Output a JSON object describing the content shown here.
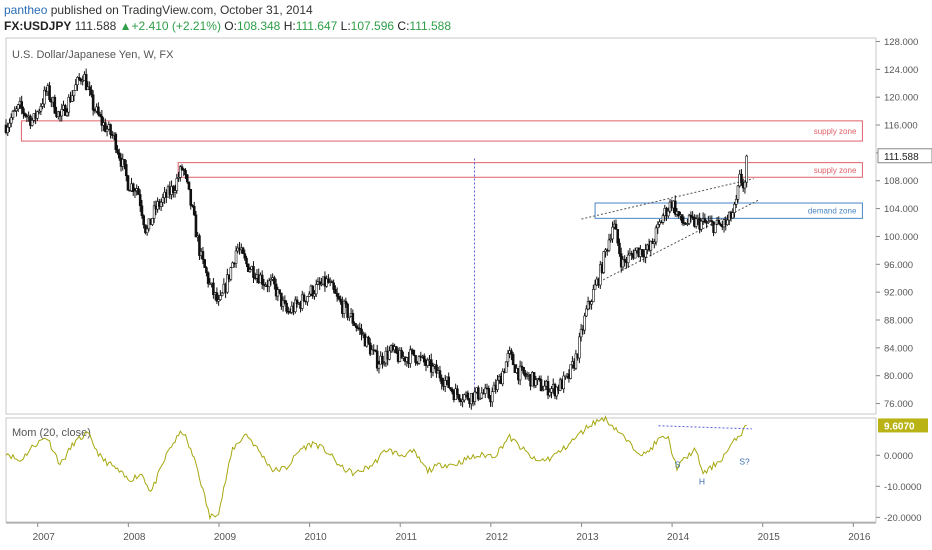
{
  "header": {
    "author": "pantheo",
    "published": "published on TradingView.com, October 31, 2014",
    "symbol": "FX:USDJPY",
    "last": "111.588",
    "change": "+2.410 (+2.21%)",
    "o_label": "O:",
    "o_value": "108.348",
    "h_label": "H:",
    "h_value": "111.647",
    "l_label": "L:",
    "l_value": "107.596",
    "c_label": "C:",
    "c_value": "111.588"
  },
  "chart_data": {
    "type": "candlestick",
    "title": "U.S. Dollar/Japanese Yen, W, FX",
    "price_axis": {
      "ticks": [
        "128.000",
        "124.000",
        "120.000",
        "116.000",
        "112.000",
        "108.000",
        "104.000",
        "100.000",
        "96.000",
        "92.000",
        "88.000",
        "84.000",
        "80.000",
        "76.000"
      ],
      "ylim": [
        74.5,
        128.5
      ],
      "last_price_label": "111.588",
      "last_price": 111.588
    },
    "x_axis": {
      "labels": [
        "2007",
        "2008",
        "2009",
        "2010",
        "2011",
        "2012",
        "2013",
        "2014",
        "2015",
        "2016"
      ],
      "xlim": [
        2006.65,
        2016.25
      ]
    },
    "price_path": [
      [
        2006.65,
        116.0
      ],
      [
        2006.8,
        118.5
      ],
      [
        2006.95,
        116.5
      ],
      [
        2007.1,
        121.0
      ],
      [
        2007.25,
        117.0
      ],
      [
        2007.4,
        121.0
      ],
      [
        2007.5,
        123.5
      ],
      [
        2007.6,
        119.0
      ],
      [
        2007.7,
        116.5
      ],
      [
        2007.85,
        114.0
      ],
      [
        2008.0,
        107.5
      ],
      [
        2008.1,
        107.0
      ],
      [
        2008.2,
        100.5
      ],
      [
        2008.3,
        104.0
      ],
      [
        2008.4,
        105.5
      ],
      [
        2008.5,
        107.0
      ],
      [
        2008.6,
        110.0
      ],
      [
        2008.7,
        104.0
      ],
      [
        2008.8,
        97.0
      ],
      [
        2008.9,
        93.0
      ],
      [
        2009.0,
        90.0
      ],
      [
        2009.1,
        94.0
      ],
      [
        2009.2,
        98.5
      ],
      [
        2009.3,
        96.0
      ],
      [
        2009.4,
        95.0
      ],
      [
        2009.5,
        93.5
      ],
      [
        2009.6,
        93.0
      ],
      [
        2009.75,
        89.0
      ],
      [
        2009.9,
        90.5
      ],
      [
        2010.0,
        92.0
      ],
      [
        2010.2,
        93.5
      ],
      [
        2010.3,
        91.0
      ],
      [
        2010.45,
        88.5
      ],
      [
        2010.6,
        85.5
      ],
      [
        2010.75,
        82.0
      ],
      [
        2010.9,
        83.5
      ],
      [
        2011.0,
        82.5
      ],
      [
        2011.15,
        83.0
      ],
      [
        2011.3,
        81.5
      ],
      [
        2011.45,
        80.0
      ],
      [
        2011.6,
        77.5
      ],
      [
        2011.75,
        77.0
      ],
      [
        2011.9,
        77.5
      ],
      [
        2012.0,
        77.0
      ],
      [
        2012.1,
        79.5
      ],
      [
        2012.2,
        83.0
      ],
      [
        2012.3,
        80.5
      ],
      [
        2012.45,
        79.5
      ],
      [
        2012.55,
        78.5
      ],
      [
        2012.7,
        78.0
      ],
      [
        2012.85,
        79.5
      ],
      [
        2012.95,
        83.0
      ],
      [
        2013.05,
        89.0
      ],
      [
        2013.2,
        94.5
      ],
      [
        2013.35,
        102.0
      ],
      [
        2013.45,
        96.0
      ],
      [
        2013.6,
        98.0
      ],
      [
        2013.75,
        98.0
      ],
      [
        2013.9,
        103.0
      ],
      [
        2014.0,
        105.0
      ],
      [
        2014.1,
        102.0
      ],
      [
        2014.3,
        102.0
      ],
      [
        2014.5,
        101.5
      ],
      [
        2014.6,
        101.8
      ],
      [
        2014.7,
        104.0
      ],
      [
        2014.75,
        108.5
      ],
      [
        2014.8,
        107.0
      ],
      [
        2014.83,
        111.6
      ]
    ],
    "zones": [
      {
        "label": "supply zone",
        "y_low": 113.7,
        "y_high": 116.6,
        "x_start": 2006.82,
        "x_end": 2016.1,
        "color": "#e0606a"
      },
      {
        "label": "supply zone",
        "y_low": 108.5,
        "y_high": 110.6,
        "x_start": 2008.55,
        "x_end": 2016.1,
        "color": "#e0606a"
      },
      {
        "label": "demand zone",
        "y_low": 102.6,
        "y_high": 104.8,
        "x_start": 2013.15,
        "x_end": 2016.1,
        "color": "#4a86c7"
      }
    ],
    "annotations": [
      {
        "kind": "vline",
        "x": 2011.82,
        "y_from": 111.2,
        "y_to": 76.0,
        "color": "#5a5adf"
      },
      {
        "kind": "trendline",
        "x1": 2013.0,
        "y1": 102.5,
        "x2": 2014.9,
        "y2": 108.3
      },
      {
        "kind": "trendline",
        "x1": 2013.2,
        "y1": 93.5,
        "x2": 2014.95,
        "y2": 105.2
      }
    ],
    "indicator": {
      "title": "Mom (20, close)",
      "ticks": [
        "0.0000",
        "-10.0000",
        "-20.0000"
      ],
      "ylim": [
        -21.5,
        12.0
      ],
      "last_label": "9.6070",
      "last_value": 9.607,
      "path": [
        [
          2006.65,
          1
        ],
        [
          2006.8,
          -2
        ],
        [
          2006.95,
          3
        ],
        [
          2007.1,
          6
        ],
        [
          2007.25,
          -3
        ],
        [
          2007.4,
          4
        ],
        [
          2007.55,
          7
        ],
        [
          2007.7,
          -1
        ],
        [
          2007.85,
          -4
        ],
        [
          2008.0,
          -8
        ],
        [
          2008.15,
          -6
        ],
        [
          2008.25,
          -12
        ],
        [
          2008.45,
          2
        ],
        [
          2008.6,
          8
        ],
        [
          2008.75,
          -3
        ],
        [
          2008.9,
          -20
        ],
        [
          2009.0,
          -18
        ],
        [
          2009.15,
          2
        ],
        [
          2009.3,
          7
        ],
        [
          2009.45,
          1
        ],
        [
          2009.6,
          -5
        ],
        [
          2009.75,
          -4
        ],
        [
          2009.9,
          2
        ],
        [
          2010.05,
          4
        ],
        [
          2010.2,
          1
        ],
        [
          2010.35,
          -4
        ],
        [
          2010.5,
          -6
        ],
        [
          2010.7,
          -3
        ],
        [
          2010.85,
          2
        ],
        [
          2011.0,
          0
        ],
        [
          2011.15,
          1
        ],
        [
          2011.3,
          -5
        ],
        [
          2011.45,
          -3
        ],
        [
          2011.6,
          -3
        ],
        [
          2011.75,
          -1
        ],
        [
          2011.9,
          0
        ],
        [
          2012.05,
          0
        ],
        [
          2012.2,
          6
        ],
        [
          2012.35,
          2
        ],
        [
          2012.5,
          -2
        ],
        [
          2012.65,
          -1
        ],
        [
          2012.8,
          2
        ],
        [
          2012.95,
          6
        ],
        [
          2013.1,
          10
        ],
        [
          2013.25,
          12
        ],
        [
          2013.4,
          8
        ],
        [
          2013.55,
          3
        ],
        [
          2013.7,
          0
        ],
        [
          2013.85,
          5
        ],
        [
          2013.95,
          6
        ],
        [
          2014.05,
          -4
        ],
        [
          2014.25,
          2
        ],
        [
          2014.35,
          -6
        ],
        [
          2014.55,
          -1
        ],
        [
          2014.7,
          5
        ],
        [
          2014.83,
          9.6
        ]
      ],
      "hs_neckline": {
        "x1": 2013.85,
        "y1": 9.5,
        "x2": 2014.88,
        "y2": 8.5
      },
      "labels": [
        {
          "text": "S",
          "x": 2014.06,
          "y": -4.0
        },
        {
          "text": "H",
          "x": 2014.33,
          "y": -9.5
        },
        {
          "text": "S?",
          "x": 2014.8,
          "y": -3.0
        }
      ]
    }
  }
}
